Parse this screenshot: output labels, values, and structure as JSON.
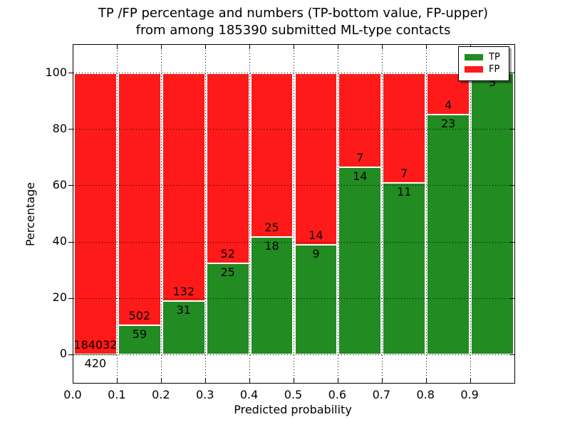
{
  "figure": {
    "title_line1": "TP /FP percentage and numbers (TP-bottom value, FP-upper)",
    "title_line2": "from among 185390 submitted ML-type contacts"
  },
  "chart_data": {
    "type": "bar",
    "stacked": true,
    "normalized": "each probability bin scaled to 100 percent",
    "title": "TP /FP percentage and numbers (TP-bottom value, FP-upper) from among 185390 submitted ML-type contacts",
    "xlabel": "Predicted probability",
    "ylabel": "Percentage",
    "xlim": [
      0.0,
      1.0
    ],
    "ylim": [
      -10,
      110
    ],
    "xticks": [
      "0.0",
      "0.1",
      "0.2",
      "0.3",
      "0.4",
      "0.5",
      "0.6",
      "0.7",
      "0.8",
      "0.9"
    ],
    "yticks": [
      0,
      20,
      40,
      60,
      80,
      100
    ],
    "total_submitted": 185390,
    "bin_starts": [
      0.0,
      0.1,
      0.2,
      0.3,
      0.4,
      0.5,
      0.6,
      0.7,
      0.8,
      0.9
    ],
    "bin_width": 0.1,
    "series": [
      {
        "name": "TP",
        "color": "#228b22",
        "counts": [
          420,
          59,
          31,
          25,
          18,
          9,
          14,
          11,
          23,
          5
        ]
      },
      {
        "name": "FP",
        "color": "#ff1a1a",
        "counts": [
          184032,
          502,
          132,
          52,
          25,
          14,
          7,
          7,
          4,
          0
        ]
      }
    ],
    "tp_percent_by_bin": [
      0.23,
      10.52,
      19.02,
      32.47,
      41.86,
      39.13,
      66.67,
      61.11,
      85.19,
      100.0
    ],
    "legend": {
      "position": "upper right",
      "entries": [
        "TP",
        "FP"
      ]
    },
    "grid": true
  }
}
